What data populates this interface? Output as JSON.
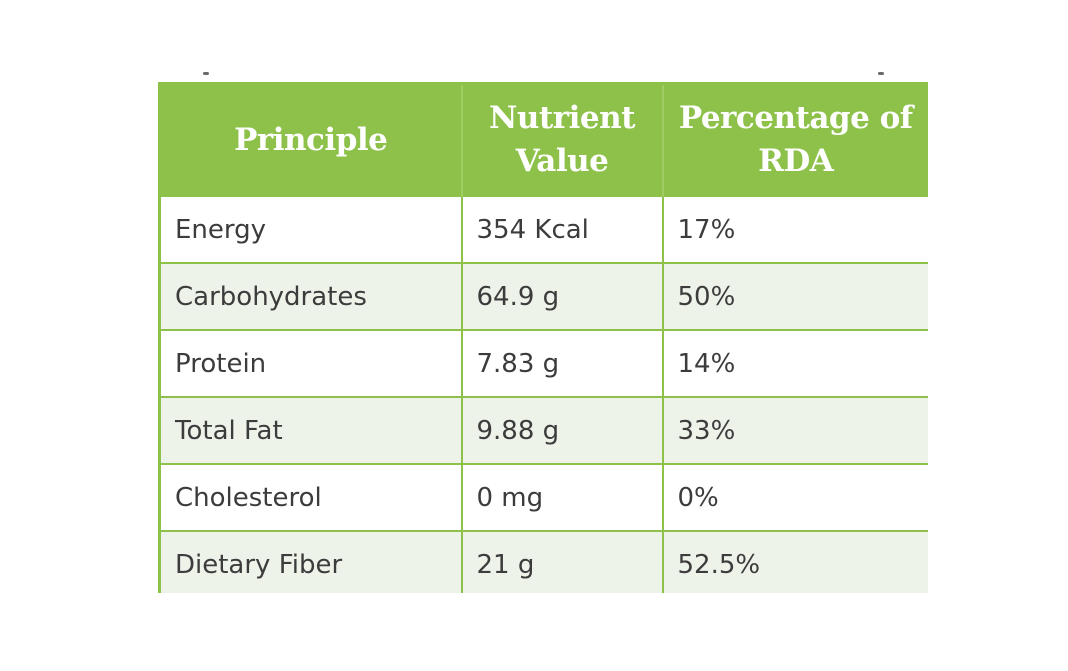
{
  "theme": {
    "accent": "#8dc14a",
    "stripe": "#eef3ea"
  },
  "table": {
    "headers": [
      "Principle",
      "Nutrient Value",
      "Percentage of RDA"
    ],
    "rows": [
      [
        "Energy",
        "354 Kcal",
        "17%"
      ],
      [
        "Carbohydrates",
        "64.9 g",
        "50%"
      ],
      [
        "Protein",
        "7.83 g",
        "14%"
      ],
      [
        "Total Fat",
        "9.88 g",
        "33%"
      ],
      [
        "Cholesterol",
        "0 mg",
        "0%"
      ],
      [
        "Dietary Fiber",
        "21 g",
        "52.5%"
      ]
    ]
  }
}
